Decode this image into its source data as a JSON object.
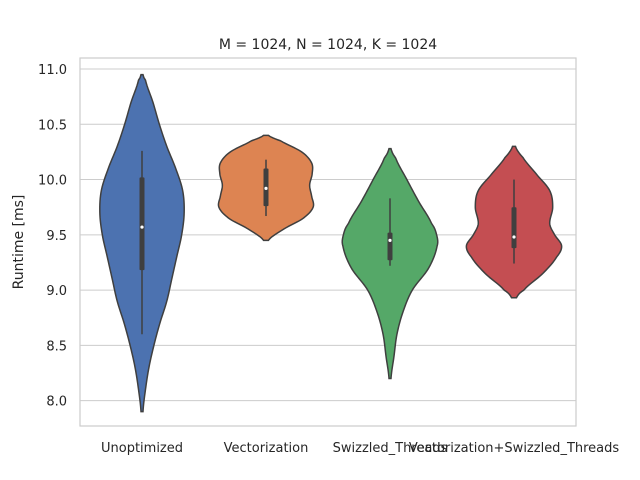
{
  "chart_data": {
    "type": "violin",
    "title": "M = 1024, N = 1024, K = 1024",
    "xlabel": "",
    "ylabel": "Runtime [ms]",
    "ylim": [
      7.77,
      11.1
    ],
    "yticks": [
      8.0,
      8.5,
      9.0,
      9.5,
      10.0,
      10.5,
      11.0
    ],
    "ytick_labels": [
      "8.0",
      "8.5",
      "9.0",
      "9.5",
      "10.0",
      "10.5",
      "11.0"
    ],
    "grid": true,
    "categories": [
      "Unoptimized",
      "Vectorization",
      "Swizzled_Threads",
      "Vectorization+Swizzled_Threads"
    ],
    "series": [
      {
        "category": "Unoptimized",
        "color": "#4c72b0",
        "range": [
          7.9,
          10.95
        ],
        "q1": 9.18,
        "median": 9.57,
        "q3": 10.02,
        "whisker": [
          8.6,
          10.26
        ],
        "density": [
          [
            7.9,
            0.02
          ],
          [
            8.1,
            0.07
          ],
          [
            8.3,
            0.14
          ],
          [
            8.5,
            0.24
          ],
          [
            8.7,
            0.36
          ],
          [
            8.9,
            0.5
          ],
          [
            9.1,
            0.6
          ],
          [
            9.3,
            0.7
          ],
          [
            9.5,
            0.8
          ],
          [
            9.7,
            0.85
          ],
          [
            9.9,
            0.82
          ],
          [
            10.1,
            0.68
          ],
          [
            10.3,
            0.5
          ],
          [
            10.5,
            0.35
          ],
          [
            10.7,
            0.22
          ],
          [
            10.9,
            0.07
          ],
          [
            10.95,
            0.02
          ]
        ]
      },
      {
        "category": "Vectorization",
        "color": "#dd8452",
        "range": [
          9.45,
          10.4
        ],
        "q1": 9.76,
        "median": 9.92,
        "q3": 10.1,
        "whisker": [
          9.67,
          10.18
        ],
        "density": [
          [
            9.45,
            0.05
          ],
          [
            9.55,
            0.35
          ],
          [
            9.65,
            0.75
          ],
          [
            9.75,
            0.95
          ],
          [
            9.85,
            0.92
          ],
          [
            9.95,
            0.88
          ],
          [
            10.05,
            0.93
          ],
          [
            10.15,
            0.92
          ],
          [
            10.25,
            0.72
          ],
          [
            10.35,
            0.3
          ],
          [
            10.4,
            0.05
          ]
        ]
      },
      {
        "category": "Swizzled_Threads",
        "color": "#55a868",
        "range": [
          8.2,
          10.28
        ],
        "q1": 9.27,
        "median": 9.45,
        "q3": 9.52,
        "whisker": [
          9.22,
          9.83
        ],
        "density": [
          [
            8.2,
            0.02
          ],
          [
            8.4,
            0.08
          ],
          [
            8.6,
            0.14
          ],
          [
            8.8,
            0.26
          ],
          [
            9.0,
            0.45
          ],
          [
            9.2,
            0.78
          ],
          [
            9.4,
            0.95
          ],
          [
            9.5,
            0.94
          ],
          [
            9.6,
            0.84
          ],
          [
            9.8,
            0.58
          ],
          [
            10.0,
            0.34
          ],
          [
            10.2,
            0.11
          ],
          [
            10.28,
            0.02
          ]
        ]
      },
      {
        "category": "Vectorization+Swizzled_Threads",
        "color": "#c44e52",
        "range": [
          8.93,
          10.3
        ],
        "q1": 9.38,
        "median": 9.48,
        "q3": 9.75,
        "whisker": [
          9.24,
          10.0
        ],
        "density": [
          [
            8.93,
            0.05
          ],
          [
            9.0,
            0.2
          ],
          [
            9.15,
            0.58
          ],
          [
            9.3,
            0.86
          ],
          [
            9.4,
            0.96
          ],
          [
            9.5,
            0.82
          ],
          [
            9.6,
            0.72
          ],
          [
            9.75,
            0.78
          ],
          [
            9.9,
            0.72
          ],
          [
            10.05,
            0.45
          ],
          [
            10.2,
            0.18
          ],
          [
            10.3,
            0.03
          ]
        ]
      }
    ]
  }
}
